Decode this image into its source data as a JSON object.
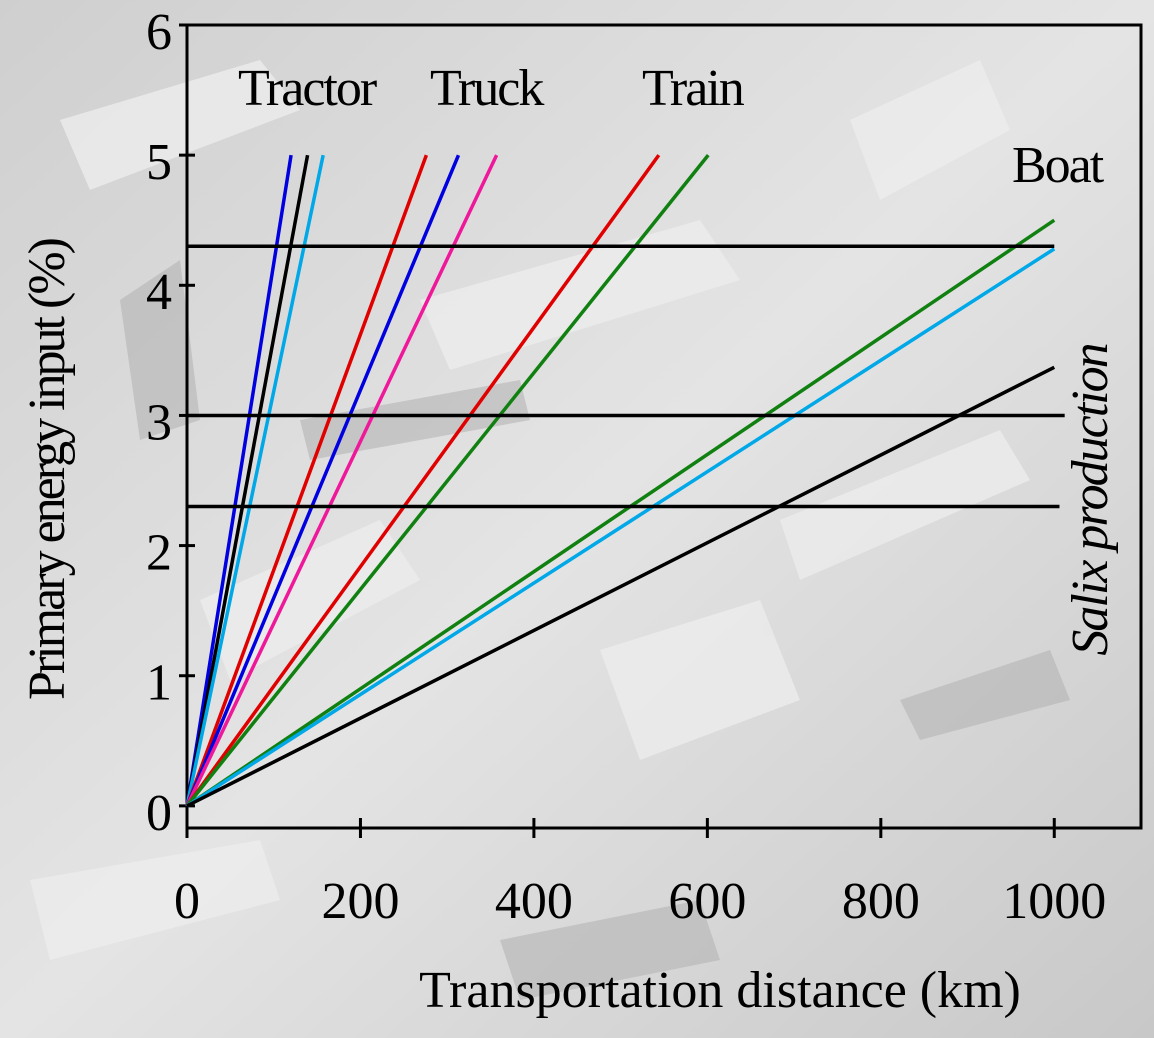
{
  "chart_data": {
    "type": "line",
    "xlabel": "Transportation distance (km)",
    "ylabel": "Primary energy input (%)",
    "xlim": [
      0,
      1100
    ],
    "xticks": [
      0,
      200,
      400,
      600,
      800,
      1000
    ],
    "ylim": [
      -0.17,
      6
    ],
    "yticks": [
      0,
      1,
      2,
      3,
      4,
      5,
      6
    ],
    "annotations": [
      "Tractor",
      "Truck",
      "Train",
      "Boat",
      "Salix production"
    ],
    "series": [
      {
        "color": "#0000e0",
        "x": [
          0,
          120
        ],
        "values": [
          0,
          5
        ]
      },
      {
        "color": "#000000",
        "x": [
          0,
          139
        ],
        "values": [
          0,
          5
        ]
      },
      {
        "color": "#00a8e8",
        "x": [
          0,
          157
        ],
        "values": [
          0,
          5
        ]
      },
      {
        "color": "#e00000",
        "x": [
          0,
          276
        ],
        "values": [
          0,
          5
        ]
      },
      {
        "color": "#0000e0",
        "x": [
          0,
          313
        ],
        "values": [
          0,
          5
        ]
      },
      {
        "color": "#f0189a",
        "x": [
          0,
          357
        ],
        "values": [
          0,
          5
        ]
      },
      {
        "color": "#e00000",
        "x": [
          0,
          544
        ],
        "values": [
          0,
          5
        ]
      },
      {
        "color": "#108010",
        "x": [
          0,
          601
        ],
        "values": [
          0,
          5
        ]
      },
      {
        "color": "#108010",
        "x": [
          0,
          1000
        ],
        "values": [
          0,
          4.5
        ]
      },
      {
        "color": "#00a8e8",
        "x": [
          0,
          1000
        ],
        "values": [
          0,
          4.28
        ]
      },
      {
        "color": "#000000",
        "x": [
          0,
          1000
        ],
        "values": [
          0,
          3.37
        ]
      },
      {
        "color": "#000000",
        "x": [
          0,
          1000
        ],
        "values": [
          4.3,
          4.3
        ]
      },
      {
        "color": "#000000",
        "x": [
          0,
          1012
        ],
        "values": [
          3,
          3
        ]
      },
      {
        "color": "#000000",
        "x": [
          0,
          1006
        ],
        "values": [
          2.3,
          2.3
        ]
      }
    ]
  }
}
